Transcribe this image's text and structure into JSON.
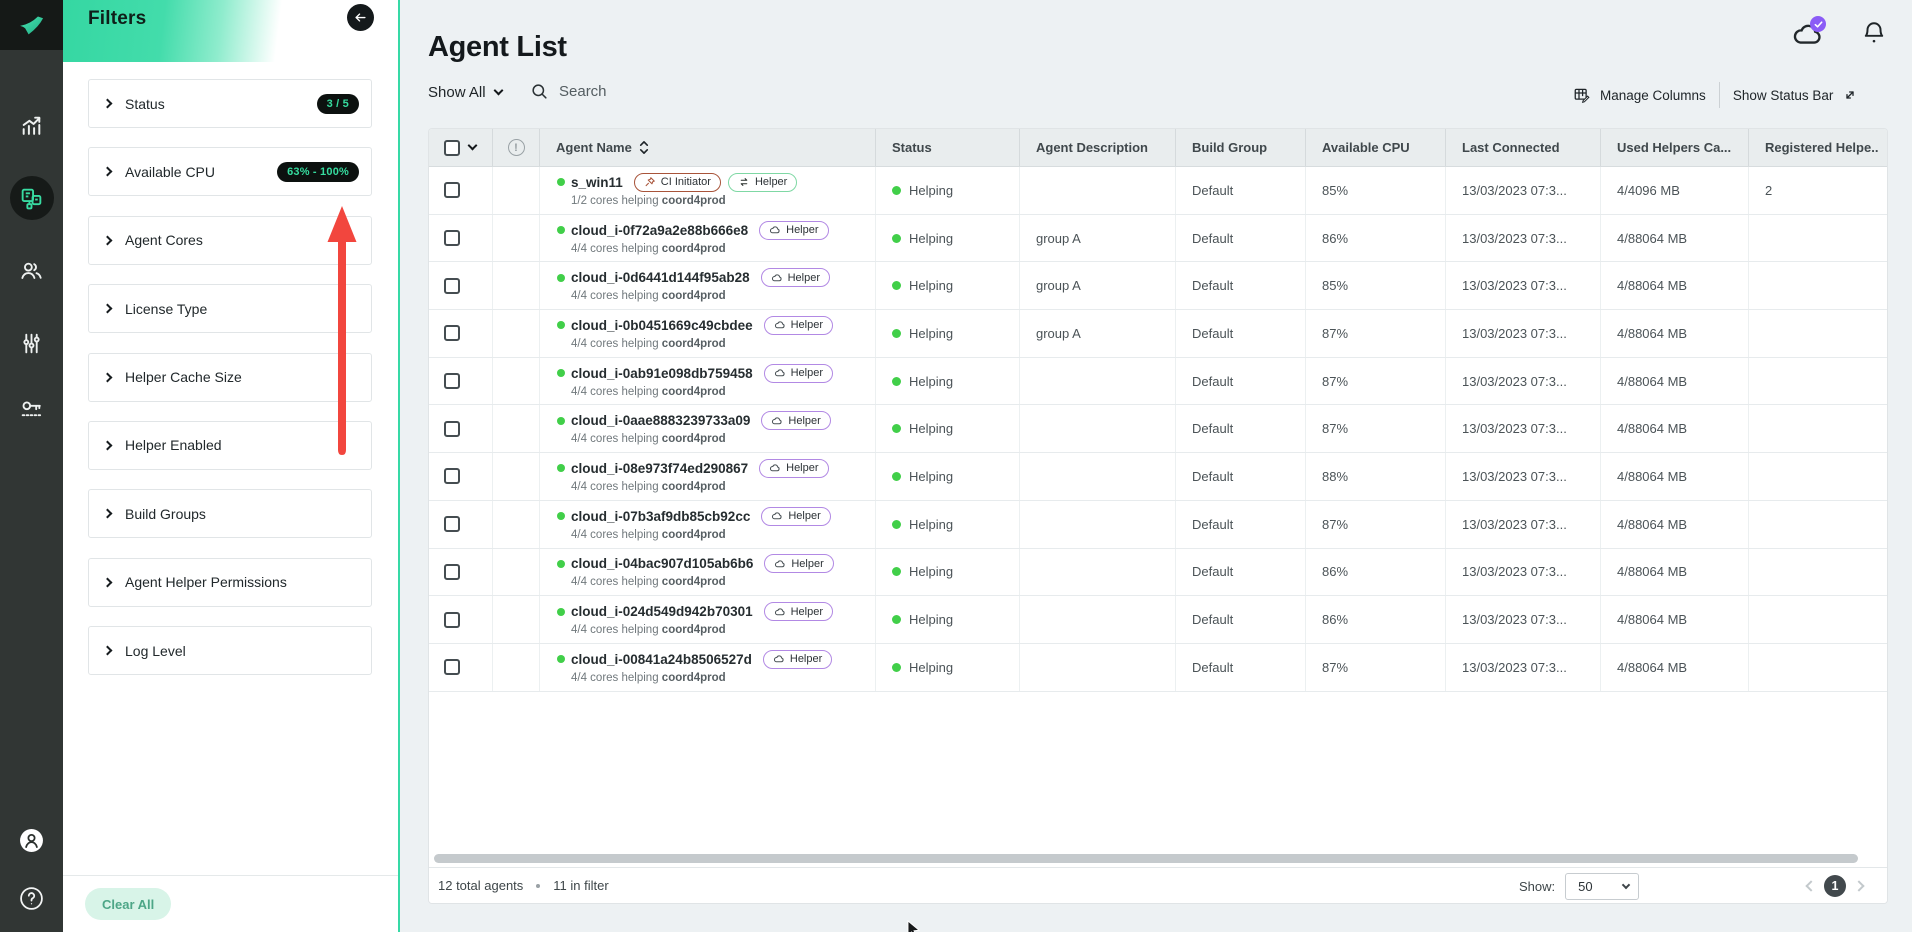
{
  "colors": {
    "accent_green": "#36d9a6",
    "status_green": "#41cf49",
    "badge_purple_border": "#b289e4",
    "badge_green_border": "#7fd8a4",
    "badge_red_border": "#a8543a",
    "notification_purple": "#8b5cf6",
    "annotation_red": "#f2463e"
  },
  "sidebar": {
    "nav_items": [
      {
        "icon": "analytics-icon",
        "active": false
      },
      {
        "icon": "agents-icon",
        "active": true
      },
      {
        "icon": "users-icon",
        "active": false
      },
      {
        "icon": "settings-sliders-icon",
        "active": false
      },
      {
        "icon": "license-key-icon",
        "active": false
      }
    ],
    "footer_items": [
      {
        "icon": "account-icon",
        "active": false
      },
      {
        "icon": "help-icon",
        "active": false
      }
    ]
  },
  "filters": {
    "title": "Filters",
    "clear_all_label": "Clear All",
    "items": [
      {
        "label": "Status",
        "badge": "3 / 5"
      },
      {
        "label": "Available CPU",
        "badge": "63% - 100%"
      },
      {
        "label": "Agent Cores",
        "badge": ""
      },
      {
        "label": "License Type",
        "badge": ""
      },
      {
        "label": "Helper Cache Size",
        "badge": ""
      },
      {
        "label": "Helper Enabled",
        "badge": ""
      },
      {
        "label": "Build Groups",
        "badge": ""
      },
      {
        "label": "Agent Helper Permissions",
        "badge": ""
      },
      {
        "label": "Log Level",
        "badge": ""
      }
    ]
  },
  "header": {
    "title": "Agent List"
  },
  "toolbar": {
    "show_all_label": "Show All",
    "search_placeholder": "Search",
    "manage_columns_label": "Manage Columns",
    "show_status_bar_label": "Show Status Bar"
  },
  "table": {
    "columns": [
      "",
      "",
      "Agent Name",
      "Status",
      "Agent Description",
      "Build Group",
      "Available CPU",
      "Last Connected",
      "Used Helpers Ca...",
      "Registered Helpe.."
    ],
    "rows": [
      {
        "name": "s_win11",
        "badges": [
          {
            "type": "ci-initiator",
            "icon": "pin-icon",
            "label": "CI Initiator"
          },
          {
            "type": "helper-sync",
            "icon": "sync-icon",
            "label": "Helper"
          }
        ],
        "sub": "1/2 cores helping ",
        "sub_strong": "coord4prod",
        "status": "Helping",
        "description": "",
        "build_group": "Default",
        "cpu": "85%",
        "last_connected": "13/03/2023 07:3...",
        "used_helpers": "4/4096 MB",
        "registered": "2"
      },
      {
        "name": "cloud_i-0f72a9a2e88b666e8",
        "badges": [
          {
            "type": "helper-cloud",
            "icon": "cloud-icon",
            "label": "Helper"
          }
        ],
        "sub": "4/4 cores helping ",
        "sub_strong": "coord4prod",
        "status": "Helping",
        "description": "group A",
        "build_group": "Default",
        "cpu": "86%",
        "last_connected": "13/03/2023 07:3...",
        "used_helpers": "4/88064 MB",
        "registered": ""
      },
      {
        "name": "cloud_i-0d6441d144f95ab28",
        "badges": [
          {
            "type": "helper-cloud",
            "icon": "cloud-icon",
            "label": "Helper"
          }
        ],
        "sub": "4/4 cores helping ",
        "sub_strong": "coord4prod",
        "status": "Helping",
        "description": "group A",
        "build_group": "Default",
        "cpu": "85%",
        "last_connected": "13/03/2023 07:3...",
        "used_helpers": "4/88064 MB",
        "registered": ""
      },
      {
        "name": "cloud_i-0b0451669c49cbdee",
        "badges": [
          {
            "type": "helper-cloud",
            "icon": "cloud-icon",
            "label": "Helper"
          }
        ],
        "sub": "4/4 cores helping ",
        "sub_strong": "coord4prod",
        "status": "Helping",
        "description": "group A",
        "build_group": "Default",
        "cpu": "87%",
        "last_connected": "13/03/2023 07:3...",
        "used_helpers": "4/88064 MB",
        "registered": ""
      },
      {
        "name": "cloud_i-0ab91e098db759458",
        "badges": [
          {
            "type": "helper-cloud",
            "icon": "cloud-icon",
            "label": "Helper"
          }
        ],
        "sub": "4/4 cores helping ",
        "sub_strong": "coord4prod",
        "status": "Helping",
        "description": "",
        "build_group": "Default",
        "cpu": "87%",
        "last_connected": "13/03/2023 07:3...",
        "used_helpers": "4/88064 MB",
        "registered": ""
      },
      {
        "name": "cloud_i-0aae8883239733a09",
        "badges": [
          {
            "type": "helper-cloud",
            "icon": "cloud-icon",
            "label": "Helper"
          }
        ],
        "sub": "4/4 cores helping ",
        "sub_strong": "coord4prod",
        "status": "Helping",
        "description": "",
        "build_group": "Default",
        "cpu": "87%",
        "last_connected": "13/03/2023 07:3...",
        "used_helpers": "4/88064 MB",
        "registered": ""
      },
      {
        "name": "cloud_i-08e973f74ed290867",
        "badges": [
          {
            "type": "helper-cloud",
            "icon": "cloud-icon",
            "label": "Helper"
          }
        ],
        "sub": "4/4 cores helping ",
        "sub_strong": "coord4prod",
        "status": "Helping",
        "description": "",
        "build_group": "Default",
        "cpu": "88%",
        "last_connected": "13/03/2023 07:3...",
        "used_helpers": "4/88064 MB",
        "registered": ""
      },
      {
        "name": "cloud_i-07b3af9db85cb92cc",
        "badges": [
          {
            "type": "helper-cloud",
            "icon": "cloud-icon",
            "label": "Helper"
          }
        ],
        "sub": "4/4 cores helping ",
        "sub_strong": "coord4prod",
        "status": "Helping",
        "description": "",
        "build_group": "Default",
        "cpu": "87%",
        "last_connected": "13/03/2023 07:3...",
        "used_helpers": "4/88064 MB",
        "registered": ""
      },
      {
        "name": "cloud_i-04bac907d105ab6b6",
        "badges": [
          {
            "type": "helper-cloud",
            "icon": "cloud-icon",
            "label": "Helper"
          }
        ],
        "sub": "4/4 cores helping ",
        "sub_strong": "coord4prod",
        "status": "Helping",
        "description": "",
        "build_group": "Default",
        "cpu": "86%",
        "last_connected": "13/03/2023 07:3...",
        "used_helpers": "4/88064 MB",
        "registered": ""
      },
      {
        "name": "cloud_i-024d549d942b70301",
        "badges": [
          {
            "type": "helper-cloud",
            "icon": "cloud-icon",
            "label": "Helper"
          }
        ],
        "sub": "4/4 cores helping ",
        "sub_strong": "coord4prod",
        "status": "Helping",
        "description": "",
        "build_group": "Default",
        "cpu": "86%",
        "last_connected": "13/03/2023 07:3...",
        "used_helpers": "4/88064 MB",
        "registered": ""
      },
      {
        "name": "cloud_i-00841a24b8506527d",
        "badges": [
          {
            "type": "helper-cloud",
            "icon": "cloud-icon",
            "label": "Helper"
          }
        ],
        "sub": "4/4 cores helping ",
        "sub_strong": "coord4prod",
        "status": "Helping",
        "description": "",
        "build_group": "Default",
        "cpu": "87%",
        "last_connected": "13/03/2023 07:3...",
        "used_helpers": "4/88064 MB",
        "registered": ""
      }
    ]
  },
  "footer": {
    "total_agents": "12 total agents",
    "in_filter": "11 in filter",
    "show_label": "Show:",
    "page_size": "50",
    "current_page": "1"
  }
}
